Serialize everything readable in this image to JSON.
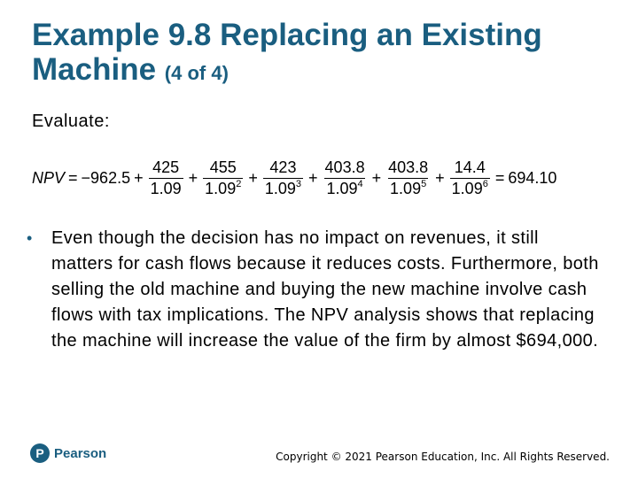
{
  "title": {
    "main": "Example 9.8 Replacing an Existing Machine",
    "sub": "(4 of 4)"
  },
  "evaluate_label": "Evaluate:",
  "equation": {
    "lhs": "NPV",
    "equals": "=",
    "initial": "−962.5",
    "plus": "+",
    "terms": [
      {
        "num": "425",
        "base": "1.09",
        "exp": ""
      },
      {
        "num": "455",
        "base": "1.09",
        "exp": "2"
      },
      {
        "num": "423",
        "base": "1.09",
        "exp": "3"
      },
      {
        "num": "403.8",
        "base": "1.09",
        "exp": "4"
      },
      {
        "num": "403.8",
        "base": "1.09",
        "exp": "5"
      },
      {
        "num": "14.4",
        "base": "1.09",
        "exp": "6"
      }
    ],
    "result": "694.10"
  },
  "bullet": {
    "marker": "•",
    "text": "Even though the decision has no impact on revenues, it still matters for cash flows because it reduces costs. Furthermore, both selling the old machine and buying the new machine involve cash flows with tax implications. The NPV analysis shows that replacing the machine will increase the value of the firm by almost $694,000."
  },
  "logo": {
    "mark": "P",
    "text": "Pearson"
  },
  "footer": "Copyright © 2021 Pearson Education, Inc. All Rights Reserved.",
  "colors": {
    "accent": "#1a5e80"
  }
}
